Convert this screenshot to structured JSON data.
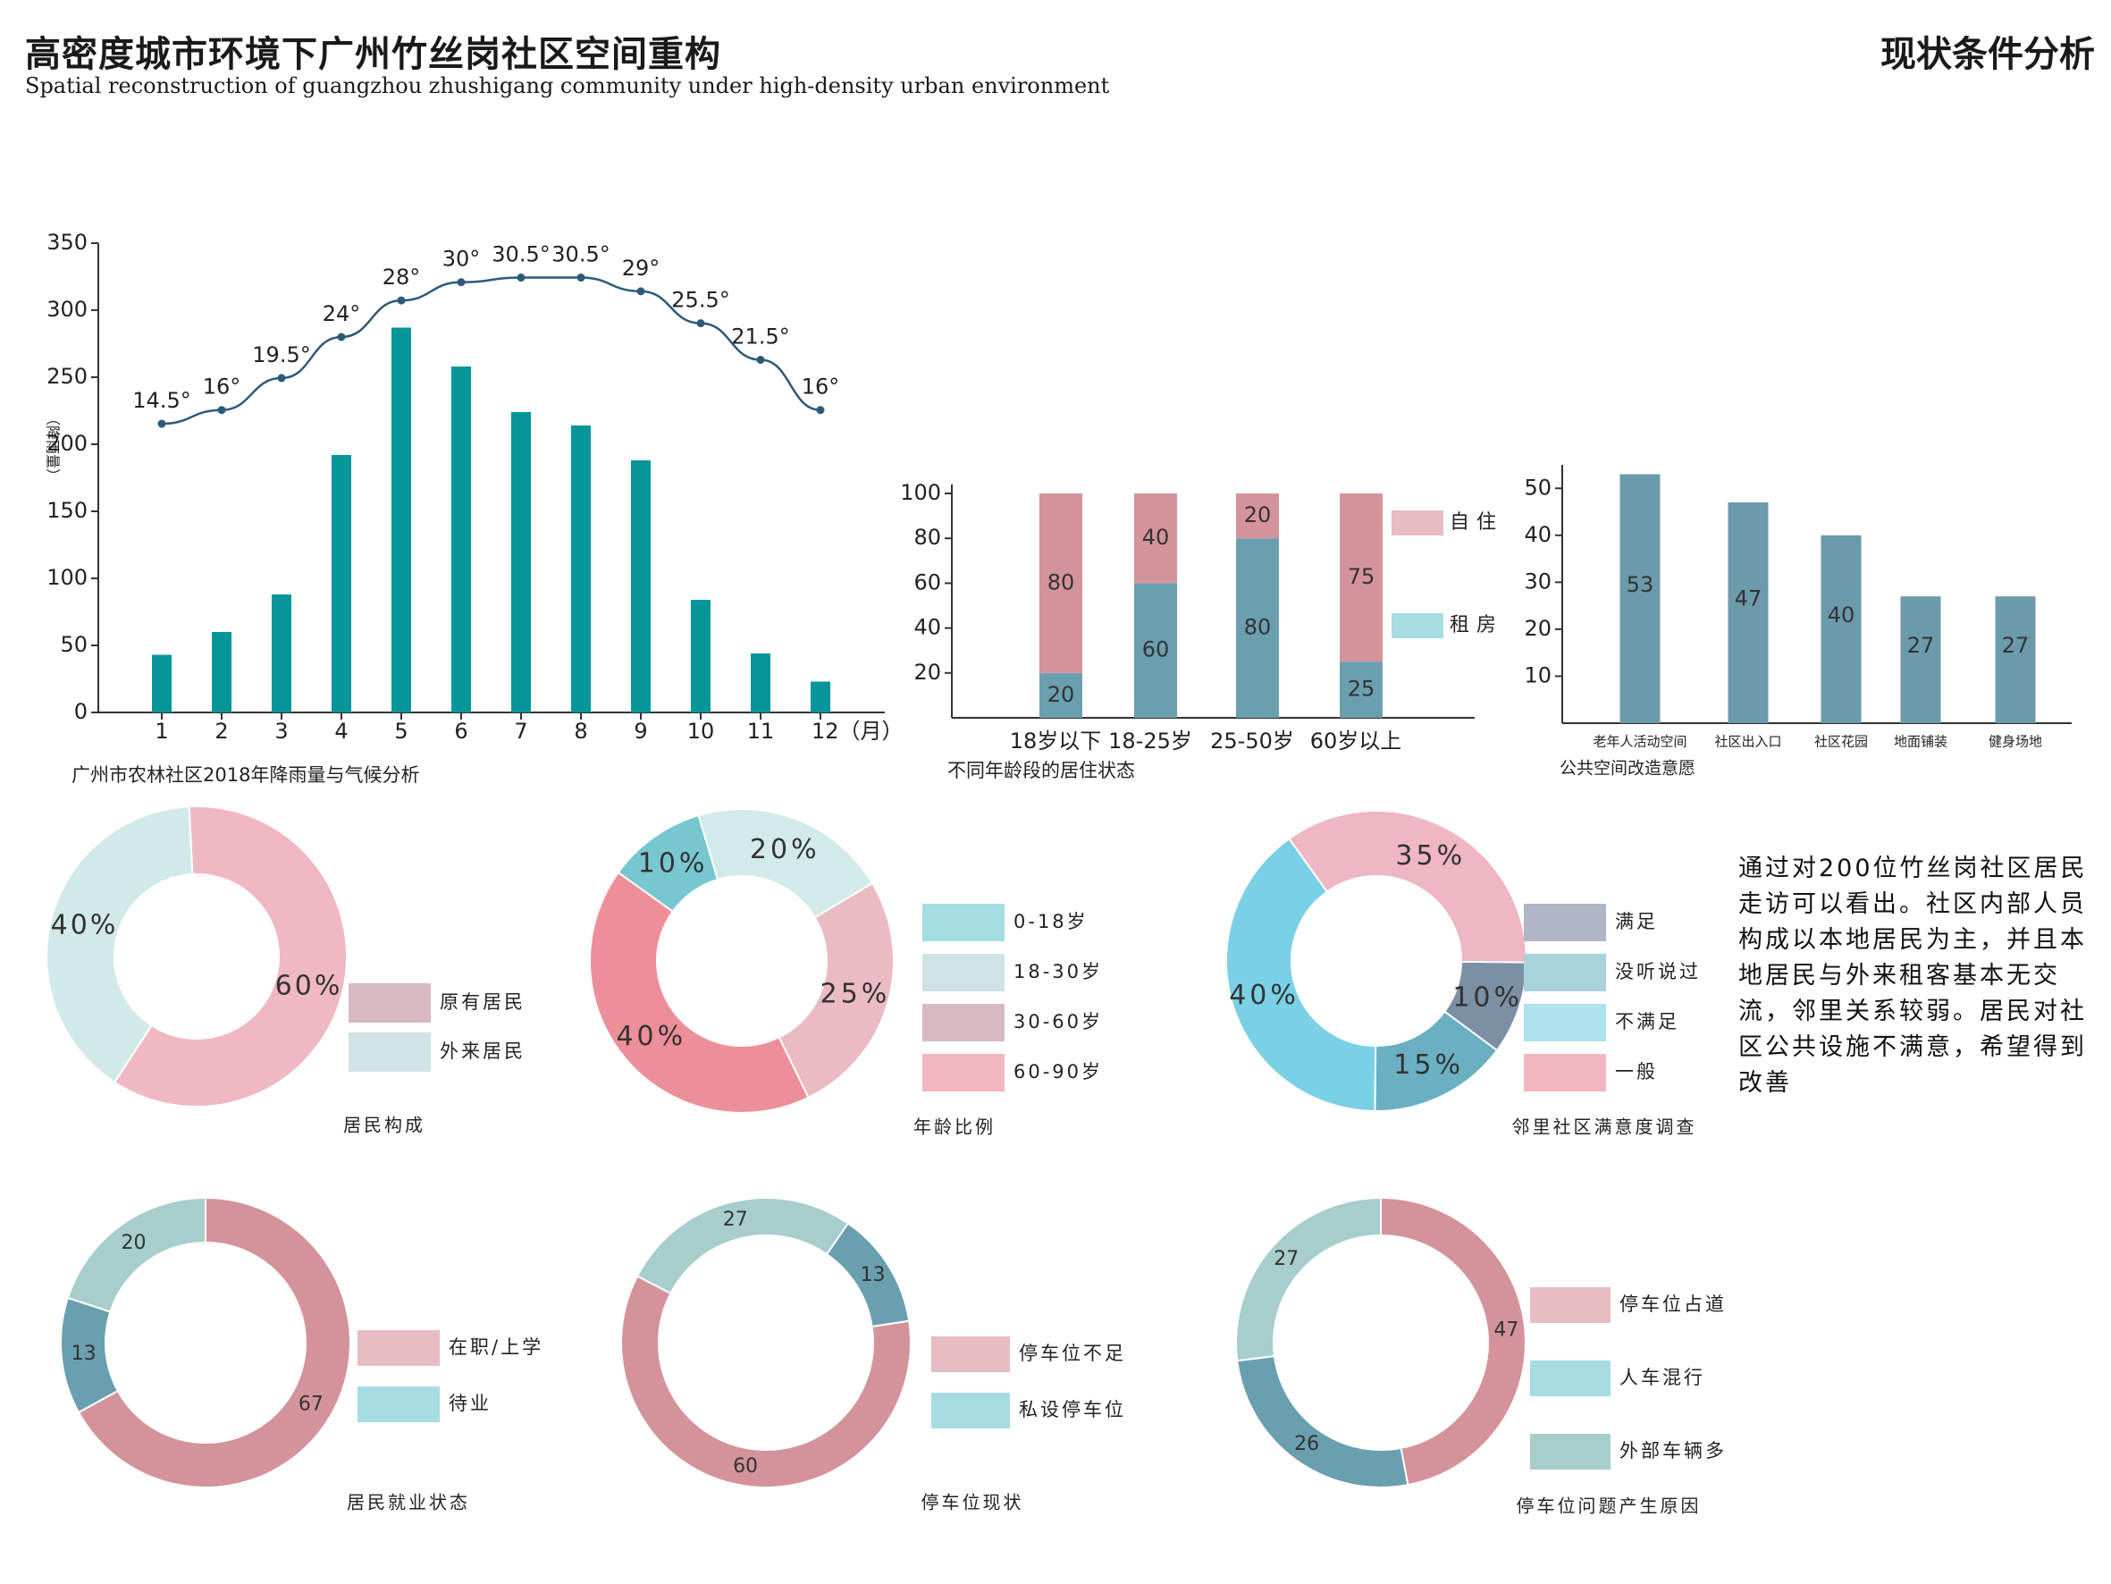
{
  "header": {
    "title_cn": "高密度城市环境下广州竹丝岗社区空间重构",
    "title_en": "Spatial reconstruction of guangzhou zhushigang community under high-density urban environment",
    "section": "现状条件分析"
  },
  "note": "通过对200位竹丝岗社区居民走访可以看出。社区内部人员构成以本地居民为主，并且本地居民与外来租客基本无交流，邻里关系较弱。居民对社区公共设施不满意，希望得到改善",
  "colors": {
    "teal": "#06969a",
    "line": "#2e5a7a",
    "pink": "#d5949c",
    "steel": "#6fa2b2",
    "slate": "#6b9aaa"
  },
  "chart_data": [
    {
      "id": "rainfall",
      "type": "bar",
      "caption": "广州市农林社区2018年降雨量与气候分析",
      "ylabel": "（降雨量）",
      "ylim": [
        0,
        350
      ],
      "yticks": [
        0,
        50,
        100,
        150,
        200,
        250,
        300,
        350
      ],
      "categories": [
        "1",
        "2",
        "3",
        "4",
        "5",
        "6",
        "7",
        "8",
        "9",
        "10",
        "11",
        "12（月）"
      ],
      "values": [
        43,
        60,
        88,
        192,
        287,
        258,
        224,
        214,
        188,
        84,
        44,
        23
      ],
      "line_series": {
        "values": [
          14.5,
          16,
          19.5,
          24,
          28,
          30,
          30.5,
          30.5,
          29,
          25.5,
          21.5,
          16
        ],
        "labels": [
          "14.5°",
          "16°",
          "19.5°",
          "24°",
          "28°",
          "30°",
          "30.5°",
          "30.5°",
          "29°",
          "25.5°",
          "21.5°",
          "16°"
        ]
      }
    },
    {
      "id": "age_residence",
      "type": "bar",
      "stacked": true,
      "caption": "不同年龄段的居住状态",
      "ylim": [
        0,
        100
      ],
      "yticks": [
        20,
        40,
        60,
        80,
        100
      ],
      "categories": [
        "18岁以下",
        "18-25岁",
        "25-50岁",
        "60岁以上"
      ],
      "series": [
        {
          "name": "租房",
          "values": [
            20,
            60,
            80,
            25
          ],
          "color": "#6a9fb0"
        },
        {
          "name": "自住",
          "values": [
            80,
            40,
            20,
            75
          ],
          "color": "#d4939b"
        }
      ],
      "legend_colors": {
        "自住": "#e8bcc3",
        "租房": "#a7dde2"
      }
    },
    {
      "id": "public_space",
      "type": "bar",
      "caption": "公共空间改造意愿",
      "ylim": [
        0,
        55
      ],
      "yticks": [
        10,
        20,
        30,
        40,
        50
      ],
      "categories": [
        "老年人活动空间",
        "社区出入口",
        "社区花园",
        "地面铺装",
        "健身场地"
      ],
      "values": [
        53,
        47,
        40,
        27,
        27
      ]
    },
    {
      "id": "resident_composition",
      "type": "pie",
      "caption": "居民构成",
      "slices": [
        {
          "name": "原有居民",
          "value": 60,
          "label": "60%",
          "color": "#f0b8c3"
        },
        {
          "name": "外来居民",
          "value": 40,
          "label": "40%",
          "color": "#d2e9ea"
        }
      ],
      "legend_colors": [
        "#d8b9c2",
        "#d1e3e5"
      ]
    },
    {
      "id": "age_ratio",
      "type": "pie",
      "caption": "年龄比例",
      "slices": [
        {
          "name": "0-18岁",
          "value": 10,
          "label": "10%",
          "color": "#76c7cf"
        },
        {
          "name": "18-30岁",
          "value": 20,
          "label": "20%",
          "color": "#d3eaea"
        },
        {
          "name": "30-60岁",
          "value": 25,
          "label": "25%",
          "color": "#ebbbc4"
        },
        {
          "name": "60-90岁",
          "value": 40,
          "label": "40%",
          "color": "#ed8f99"
        }
      ],
      "legend_colors": [
        "#a4dee2",
        "#cfe3e5",
        "#d8b9c2",
        "#f2b6bf"
      ]
    },
    {
      "id": "satisfaction",
      "type": "pie",
      "caption": "邻里社区满意度调查",
      "slices": [
        {
          "name": "满足",
          "value": 10,
          "label": "10%",
          "color": "#7b8fa5"
        },
        {
          "name": "没听说过",
          "value": 15,
          "label": "15%",
          "color": "#6ab0c2"
        },
        {
          "name": "不满足",
          "value": 40,
          "label": "40%",
          "color": "#7ad1e6"
        },
        {
          "name": "一般",
          "value": 35,
          "label": "35%",
          "color": "#efb6c3"
        }
      ],
      "legend_colors": [
        "#afb6c5",
        "#a8d3da",
        "#aee2ef",
        "#f2b6bf"
      ]
    },
    {
      "id": "employment",
      "type": "pie",
      "caption": "居民就业状态",
      "slices": [
        {
          "name": "在职/上学",
          "value": 67,
          "label": "67",
          "color": "#d4939b"
        },
        {
          "name": "待业",
          "value": 13,
          "label": "13",
          "color": "#6a9fb0"
        },
        {
          "name": "",
          "value": 20,
          "label": "20",
          "color": "#a7cdcc"
        }
      ],
      "legend_colors": [
        "#e8bcc3",
        "#a7dde2"
      ]
    },
    {
      "id": "parking_status",
      "type": "pie",
      "caption": "停车位现状",
      "slices": [
        {
          "name": "",
          "value": 60,
          "label": "60",
          "color": "#d4939b"
        },
        {
          "name": "",
          "value": 27,
          "label": "27",
          "color": "#a7cdcc"
        },
        {
          "name": "",
          "value": 13,
          "label": "13",
          "color": "#6a9fb0"
        }
      ],
      "legend": [
        "停车位不足",
        "私设停车位"
      ],
      "legend_colors": [
        "#e8bcc3",
        "#a7dde2"
      ]
    },
    {
      "id": "parking_cause",
      "type": "pie",
      "caption": "停车位问题产生原因",
      "slices": [
        {
          "name": "停车位占道",
          "value": 47,
          "label": "47",
          "color": "#d4939b"
        },
        {
          "name": "人车混行",
          "value": 26,
          "label": "26",
          "color": "#6a9fb0"
        },
        {
          "name": "外部车辆多",
          "value": 27,
          "label": "27",
          "color": "#a7cdcc"
        }
      ],
      "legend_colors": [
        "#e8bcc3",
        "#a7dde2",
        "#a7cdcc"
      ]
    }
  ]
}
